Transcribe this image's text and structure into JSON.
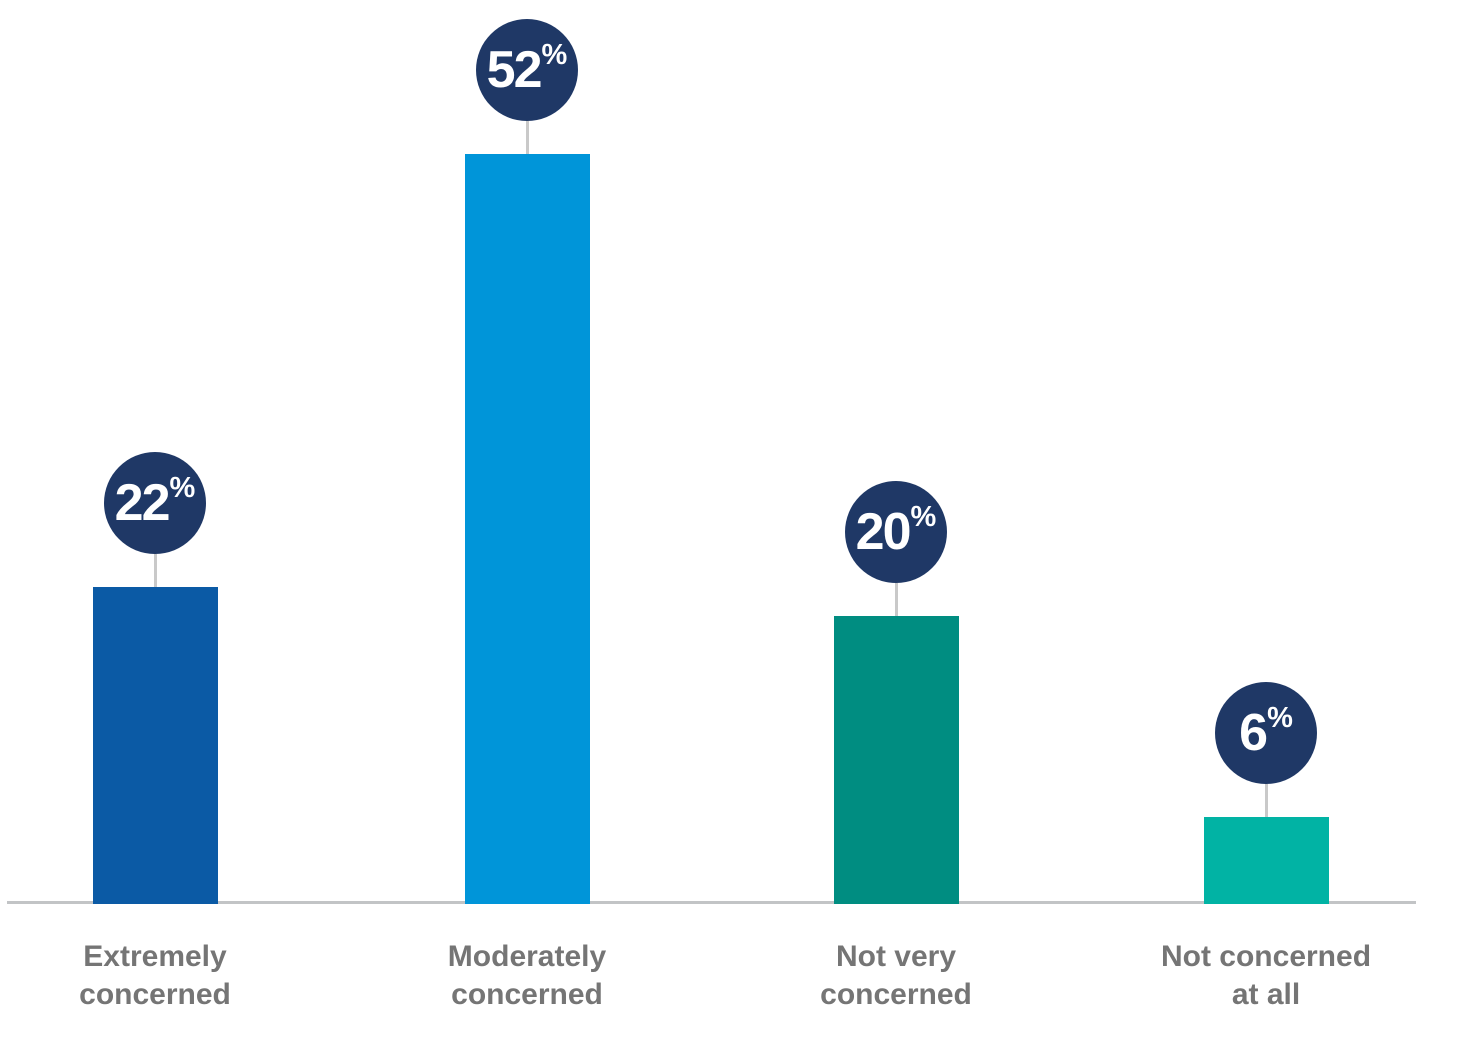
{
  "chart_data": {
    "type": "bar",
    "orientation": "vertical",
    "title": "",
    "xlabel": "",
    "ylabel": "",
    "categories": [
      "Extremely concerned",
      "Moderately concerned",
      "Not very concerned",
      "Not concerned at all"
    ],
    "category_lines": [
      [
        "Extremely",
        "concerned"
      ],
      [
        "Moderately",
        "concerned"
      ],
      [
        "Not very",
        "concerned"
      ],
      [
        "Not concerned",
        "at all"
      ]
    ],
    "values": [
      22,
      52,
      20,
      6
    ],
    "value_labels": [
      "22%",
      "52%",
      "20%",
      "6%"
    ],
    "percent_sign": "%",
    "unit": "%",
    "ylim": [
      0,
      60
    ],
    "grid": false,
    "legend": "none",
    "bar_colors": [
      "#0b5aa5",
      "#0095d9",
      "#008d81",
      "#01b3a4"
    ],
    "badge_fill": "#1f3866",
    "badge_text_color": "#ffffff",
    "connector_color": "#c9c9c9",
    "axis_line_color": "#c2c4c6",
    "category_label_color": "#757575",
    "background": "#ffffff"
  }
}
